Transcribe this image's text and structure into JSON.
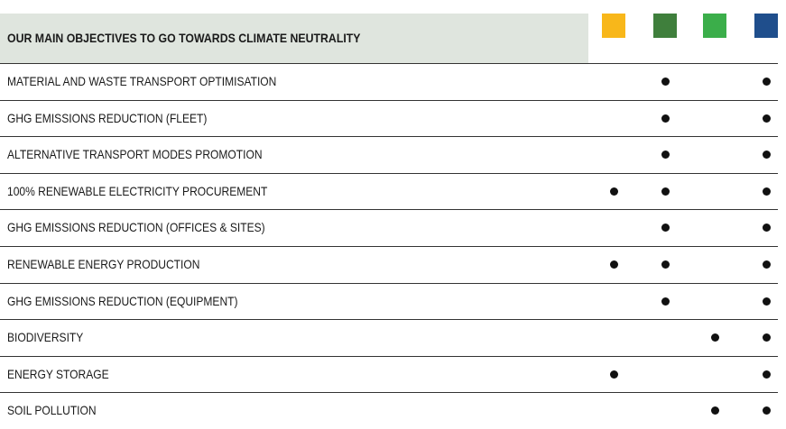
{
  "header": {
    "title": "OUR MAIN OBJECTIVES TO GO TOWARDS CLIMATE NEUTRALITY"
  },
  "table": {
    "rows": [
      {
        "label": "MATERIAL AND WASTE TRANSPORT OPTIMISATION",
        "marks": [
          false,
          true,
          false,
          true
        ]
      },
      {
        "label": "GHG EMISSIONS REDUCTION (FLEET)",
        "marks": [
          false,
          true,
          false,
          true
        ]
      },
      {
        "label": "ALTERNATIVE TRANSPORT MODES PROMOTION",
        "marks": [
          false,
          true,
          false,
          true
        ]
      },
      {
        "label": "100% RENEWABLE ELECTRICITY PROCUREMENT",
        "marks": [
          true,
          true,
          false,
          true
        ]
      },
      {
        "label": "GHG EMISSIONS REDUCTION (OFFICES & SITES)",
        "marks": [
          false,
          true,
          false,
          true
        ]
      },
      {
        "label": "RENEWABLE ENERGY PRODUCTION",
        "marks": [
          true,
          true,
          false,
          true
        ]
      },
      {
        "label": "GHG EMISSIONS REDUCTION (EQUIPMENT)",
        "marks": [
          false,
          true,
          false,
          true
        ]
      },
      {
        "label": "BIODIVERSITY",
        "marks": [
          false,
          false,
          true,
          true
        ]
      },
      {
        "label": "ENERGY STORAGE",
        "marks": [
          true,
          false,
          false,
          true
        ]
      },
      {
        "label": "SOIL POLLUTION",
        "marks": [
          false,
          false,
          true,
          true
        ]
      }
    ]
  }
}
